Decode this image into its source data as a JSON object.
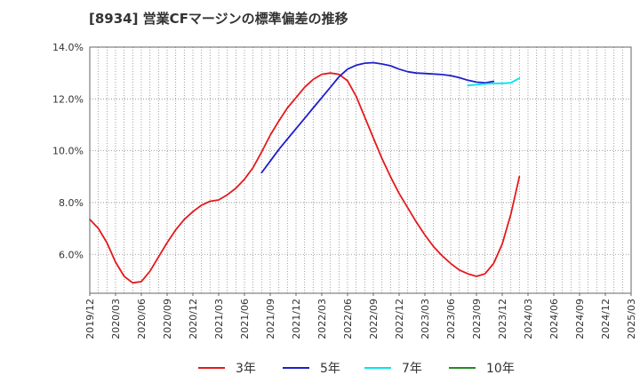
{
  "chart_data": {
    "type": "line",
    "title": "[8934]  営業CFマージンの標準偏差の推移",
    "xlabel": "",
    "ylabel": "",
    "ylim": [
      4.5,
      14.0
    ],
    "y_ticks": [
      6.0,
      8.0,
      10.0,
      12.0,
      14.0
    ],
    "y_tick_labels": [
      "6.0%",
      "8.0%",
      "10.0%",
      "12.0%",
      "14.0%"
    ],
    "x_range": [
      "2019/12",
      "2025/03"
    ],
    "x_tick_labels": [
      "2019/12",
      "2020/03",
      "2020/06",
      "2020/09",
      "2020/12",
      "2021/03",
      "2021/06",
      "2021/09",
      "2021/12",
      "2022/03",
      "2022/06",
      "2022/09",
      "2022/12",
      "2023/03",
      "2023/06",
      "2023/09",
      "2023/12",
      "2024/03",
      "2024/06",
      "2024/09",
      "2024/12",
      "2025/03"
    ],
    "grid": true,
    "legend_position": "bottom",
    "series": [
      {
        "name": "3年",
        "color": "#e31a1c",
        "points": [
          [
            "2019/12",
            7.35
          ],
          [
            "2020/01",
            7.0
          ],
          [
            "2020/02",
            6.45
          ],
          [
            "2020/03",
            5.7
          ],
          [
            "2020/04",
            5.15
          ],
          [
            "2020/05",
            4.9
          ],
          [
            "2020/06",
            4.95
          ],
          [
            "2020/07",
            5.35
          ],
          [
            "2020/08",
            5.9
          ],
          [
            "2020/09",
            6.45
          ],
          [
            "2020/10",
            6.95
          ],
          [
            "2020/11",
            7.35
          ],
          [
            "2020/12",
            7.65
          ],
          [
            "2021/01",
            7.9
          ],
          [
            "2021/02",
            8.05
          ],
          [
            "2021/03",
            8.1
          ],
          [
            "2021/04",
            8.3
          ],
          [
            "2021/05",
            8.55
          ],
          [
            "2021/06",
            8.9
          ],
          [
            "2021/07",
            9.35
          ],
          [
            "2021/08",
            9.95
          ],
          [
            "2021/09",
            10.6
          ],
          [
            "2021/10",
            11.15
          ],
          [
            "2021/11",
            11.65
          ],
          [
            "2021/12",
            12.05
          ],
          [
            "2022/01",
            12.45
          ],
          [
            "2022/02",
            12.75
          ],
          [
            "2022/03",
            12.95
          ],
          [
            "2022/04",
            13.0
          ],
          [
            "2022/05",
            12.95
          ],
          [
            "2022/06",
            12.7
          ],
          [
            "2022/07",
            12.1
          ],
          [
            "2022/08",
            11.3
          ],
          [
            "2022/09",
            10.5
          ],
          [
            "2022/10",
            9.7
          ],
          [
            "2022/11",
            9.0
          ],
          [
            "2022/12",
            8.35
          ],
          [
            "2023/01",
            7.8
          ],
          [
            "2023/02",
            7.25
          ],
          [
            "2023/03",
            6.75
          ],
          [
            "2023/04",
            6.3
          ],
          [
            "2023/05",
            5.95
          ],
          [
            "2023/06",
            5.65
          ],
          [
            "2023/07",
            5.4
          ],
          [
            "2023/08",
            5.25
          ],
          [
            "2023/09",
            5.15
          ],
          [
            "2023/10",
            5.25
          ],
          [
            "2023/11",
            5.65
          ],
          [
            "2023/12",
            6.4
          ],
          [
            "2024/01",
            7.55
          ],
          [
            "2024/02",
            9.0
          ]
        ]
      },
      {
        "name": "5年",
        "color": "#1f1fcc",
        "points": [
          [
            "2021/08",
            9.15
          ],
          [
            "2021/09",
            9.6
          ],
          [
            "2021/10",
            10.05
          ],
          [
            "2021/11",
            10.45
          ],
          [
            "2021/12",
            10.85
          ],
          [
            "2022/01",
            11.25
          ],
          [
            "2022/02",
            11.65
          ],
          [
            "2022/03",
            12.05
          ],
          [
            "2022/04",
            12.45
          ],
          [
            "2022/05",
            12.85
          ],
          [
            "2022/06",
            13.15
          ],
          [
            "2022/07",
            13.3
          ],
          [
            "2022/08",
            13.38
          ],
          [
            "2022/09",
            13.4
          ],
          [
            "2022/10",
            13.35
          ],
          [
            "2022/11",
            13.28
          ],
          [
            "2022/12",
            13.15
          ],
          [
            "2023/01",
            13.05
          ],
          [
            "2023/02",
            13.0
          ],
          [
            "2023/03",
            12.98
          ],
          [
            "2023/04",
            12.96
          ],
          [
            "2023/05",
            12.94
          ],
          [
            "2023/06",
            12.9
          ],
          [
            "2023/07",
            12.82
          ],
          [
            "2023/08",
            12.72
          ],
          [
            "2023/09",
            12.65
          ],
          [
            "2023/10",
            12.62
          ],
          [
            "2023/11",
            12.68
          ]
        ]
      },
      {
        "name": "7年",
        "color": "#00e5ee",
        "points": [
          [
            "2023/08",
            12.52
          ],
          [
            "2023/09",
            12.55
          ],
          [
            "2023/10",
            12.58
          ],
          [
            "2023/11",
            12.6
          ],
          [
            "2023/12",
            12.6
          ],
          [
            "2024/01",
            12.62
          ],
          [
            "2024/02",
            12.8
          ]
        ]
      },
      {
        "name": "10年",
        "color": "#228b22",
        "points": []
      }
    ]
  }
}
